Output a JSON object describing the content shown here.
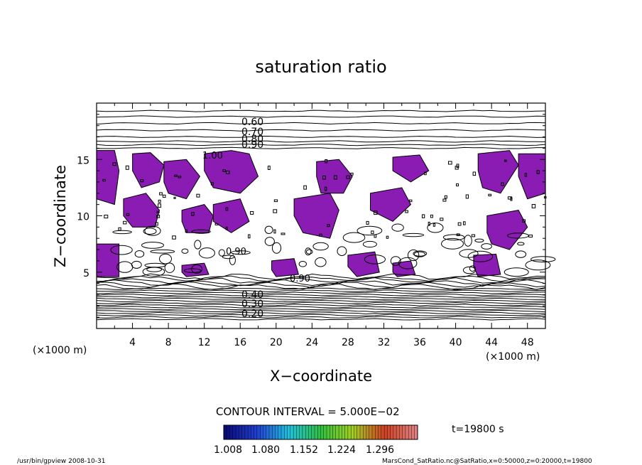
{
  "chart_data": {
    "type": "contour",
    "title": "saturation ratio",
    "xlabel": "X−coordinate",
    "ylabel": "Z−coordinate",
    "x_unit": "(×1000 m)",
    "y_unit": "(×1000 m)",
    "xlim": [
      0,
      50
    ],
    "ylim": [
      0,
      20
    ],
    "x_ticks": [
      4,
      8,
      12,
      16,
      20,
      24,
      28,
      32,
      36,
      40,
      44,
      48
    ],
    "y_ticks": [
      5,
      10,
      15
    ],
    "contour_interval_text": "CONTOUR INTERVAL = 5.000E−02",
    "time_text": "t=19800 s",
    "contour_labels_top": [
      "0.60",
      "0.70",
      "0.80",
      "0.90"
    ],
    "contour_labels_bottom": [
      "0.40",
      "0.30",
      "0.20"
    ],
    "contour_label_mid": [
      "1.00",
      "0.90",
      "0.90"
    ],
    "colorbar_ticks": [
      "1.008",
      "1.080",
      "1.152",
      "1.224",
      "1.296"
    ],
    "colorbar_colors": [
      "#0a0a7a",
      "#2040d0",
      "#20c0e0",
      "#30c040",
      "#a0d020",
      "#d04020",
      "#e08080"
    ],
    "fill_color": "#8a1cb4",
    "footer_left": "/usr/bin/gpview   2008-10-31",
    "footer_right": "MarsCond_SatRatio.nc@SatRatio,x=0:50000,z=0:20000,t=19800",
    "supersaturated_regions": [
      {
        "x": [
          0,
          2,
          2.5,
          2,
          0
        ],
        "y": [
          15.8,
          15.8,
          14,
          11,
          11.5
        ]
      },
      {
        "x": [
          4,
          6,
          7.5,
          7,
          5,
          4
        ],
        "y": [
          15.5,
          15.6,
          14.5,
          13,
          12.5,
          14
        ]
      },
      {
        "x": [
          3,
          5.5,
          7,
          6.5,
          4,
          3
        ],
        "y": [
          11.5,
          12,
          10.5,
          9,
          9,
          10
        ]
      },
      {
        "x": [
          7.5,
          10,
          11.5,
          10,
          8,
          7.5
        ],
        "y": [
          14.8,
          15,
          13.5,
          11.5,
          12,
          13
        ]
      },
      {
        "x": [
          9.5,
          12,
          13,
          12.5,
          10,
          9.5
        ],
        "y": [
          10.5,
          11,
          10,
          8.5,
          8.5,
          9.5
        ]
      },
      {
        "x": [
          12,
          15,
          17,
          18,
          16,
          13,
          12
        ],
        "y": [
          15.5,
          15.8,
          15.5,
          13.5,
          12,
          12.5,
          14
        ]
      },
      {
        "x": [
          13,
          16,
          17,
          15,
          13
        ],
        "y": [
          11,
          11.5,
          9.5,
          8.5,
          9.5
        ]
      },
      {
        "x": [
          24.5,
          27,
          28.5,
          27.5,
          25,
          24.5
        ],
        "y": [
          14.8,
          15,
          13.5,
          12,
          12,
          13.5
        ]
      },
      {
        "x": [
          22,
          26,
          27,
          26,
          23,
          22
        ],
        "y": [
          11.5,
          12,
          10.5,
          8,
          8.5,
          10
        ]
      },
      {
        "x": [
          33,
          36,
          37,
          35,
          33
        ],
        "y": [
          15.2,
          15.4,
          14,
          13,
          14
        ]
      },
      {
        "x": [
          30.5,
          34,
          35,
          33,
          30.5
        ],
        "y": [
          12,
          12.5,
          11,
          9.5,
          10.5
        ]
      },
      {
        "x": [
          42.5,
          46,
          47,
          45,
          43,
          42.5
        ],
        "y": [
          15.5,
          15.8,
          14.5,
          12,
          12.5,
          14
        ]
      },
      {
        "x": [
          47,
          50,
          50,
          48,
          47
        ],
        "y": [
          15.5,
          15.5,
          12,
          11.5,
          13.5
        ]
      },
      {
        "x": [
          43.5,
          47,
          48,
          46,
          44,
          43.5
        ],
        "y": [
          10,
          10.5,
          9,
          7,
          7.5,
          8.5
        ]
      },
      {
        "x": [
          0,
          2.5,
          2.5,
          0
        ],
        "y": [
          7.5,
          7.5,
          4.6,
          4.6
        ]
      },
      {
        "x": [
          9.5,
          12,
          12.5,
          10,
          9.5
        ],
        "y": [
          5.6,
          5.8,
          4.8,
          4.6,
          5
        ]
      },
      {
        "x": [
          19.5,
          22,
          22.5,
          20,
          19.5
        ],
        "y": [
          6,
          6.2,
          4.8,
          4.6,
          5.2
        ]
      },
      {
        "x": [
          28,
          31,
          31.5,
          29,
          28
        ],
        "y": [
          6.5,
          6.8,
          5,
          4.6,
          5.5
        ]
      },
      {
        "x": [
          33,
          35,
          35.5,
          33.5,
          33
        ],
        "y": [
          5.8,
          6,
          4.8,
          4.6,
          5
        ]
      },
      {
        "x": [
          42,
          44.5,
          45,
          42.5,
          42
        ],
        "y": [
          6.5,
          6.6,
          4.8,
          4.6,
          5.5
        ]
      }
    ]
  }
}
